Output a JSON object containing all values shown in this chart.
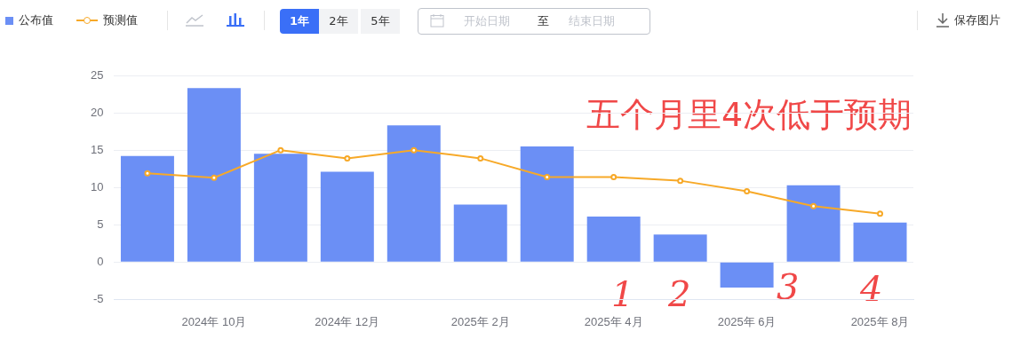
{
  "chart_data": {
    "type": "bar",
    "categories": [
      null,
      "2024年 10月",
      null,
      "2024年 12月",
      null,
      "2025年 2月",
      null,
      "2025年 4月",
      null,
      "2025年 6月",
      null,
      "2025年 8月"
    ],
    "series": [
      {
        "name": "公布值",
        "color": "#6b8ff5",
        "values": [
          14.2,
          23.3,
          14.5,
          12.1,
          18.3,
          7.7,
          15.5,
          6.1,
          3.7,
          -3.4,
          10.3,
          5.3
        ]
      },
      {
        "name": "预测值",
        "type": "line",
        "color": "#f7a928",
        "values": [
          11.9,
          11.3,
          15.0,
          13.9,
          15.0,
          13.9,
          11.4,
          11.4,
          10.9,
          9.5,
          7.5,
          6.5
        ]
      }
    ],
    "ylim": [
      -5,
      25
    ],
    "yticks": [
      -5,
      0,
      5,
      10,
      15,
      20,
      25
    ],
    "grid": "y",
    "legend": "top left",
    "marker": "circle",
    "annotations": [
      "五个月里4次低于预期",
      "1",
      "2",
      "3",
      "4",
      "1年",
      "2年",
      "5年",
      "开始日期",
      "至",
      "结束日期",
      "保存图片"
    ]
  }
}
